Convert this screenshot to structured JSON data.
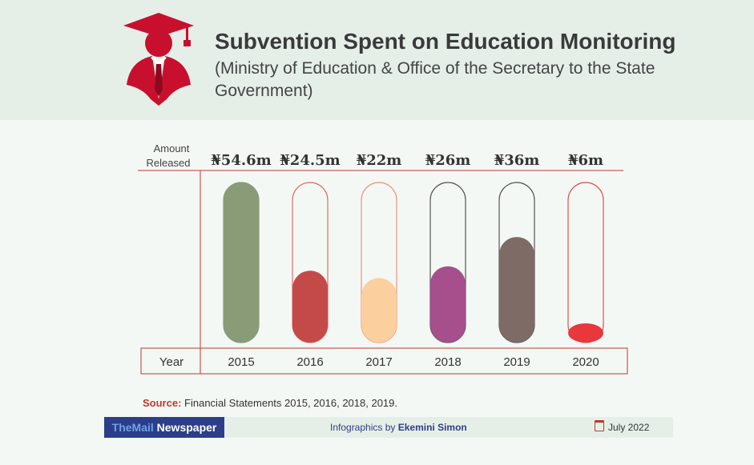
{
  "header": {
    "title": "Subvention Spent on Education Monitoring",
    "subtitle": "(Ministry of Education & Office of the Secretary to the State Government)"
  },
  "chart_data": {
    "type": "bar",
    "title": "Subvention Spent on Education Monitoring",
    "value_header": "Amount Released",
    "category_header": "Year",
    "categories": [
      "2015",
      "2016",
      "2017",
      "2018",
      "2019",
      "2020"
    ],
    "values": [
      54.6,
      24.5,
      22,
      26,
      36,
      6
    ],
    "value_labels": [
      "₦54.6m",
      "₦24.5m",
      "₦22m",
      "₦26m",
      "₦36m",
      "₦6m"
    ],
    "unit": "₦ million",
    "colors": [
      "#8a9b78",
      "#c44a4a",
      "#fccf9f",
      "#a64f8c",
      "#7f6b66",
      "#e8373d"
    ],
    "outline_colors": [
      "#8a9b78",
      "#e06d63",
      "#f0937a",
      "#555555",
      "#555555",
      "#e0524e"
    ],
    "ylim": [
      0,
      54.6
    ]
  },
  "source": {
    "label": "Source:",
    "text": "Financial Statements 2015, 2016, 2018, 2019."
  },
  "footer": {
    "brand_prefix": "TheMail",
    "brand_suffix": " Newspaper",
    "credit_prefix": "Infographics by ",
    "credit_name": "Ekemini Simon",
    "date": "July 2022"
  },
  "colors": {
    "accent_red": "#c0392b",
    "brand_blue": "#2c3e8a",
    "brand_highlight": "#6ea3e0"
  }
}
